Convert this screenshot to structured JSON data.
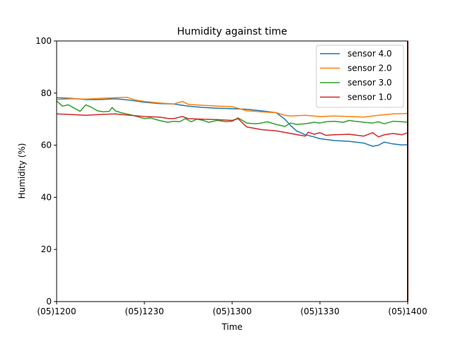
{
  "chart_data": {
    "type": "line",
    "title": "Humidity against  time",
    "xlabel": "Time",
    "ylabel": "Humidity (%)",
    "x_unit": "minutes",
    "x_ticks": [
      {
        "value": 0,
        "label": "(05)1200"
      },
      {
        "value": 30,
        "label": "(05)1230"
      },
      {
        "value": 60,
        "label": "(05)1300"
      },
      {
        "value": 90,
        "label": "(05)1330"
      },
      {
        "value": 120,
        "label": "(05)1400"
      }
    ],
    "xlim": [
      0,
      120
    ],
    "ylim": [
      0,
      100
    ],
    "y_ticks": [
      0,
      20,
      40,
      60,
      80,
      100
    ],
    "grid": false,
    "legend_position": "top-right",
    "series": [
      {
        "name": "sensor 4.0",
        "color": "#1f77b4",
        "x": [
          0,
          5,
          10,
          15,
          20,
          25,
          30,
          35,
          40,
          45,
          50,
          55,
          60,
          65,
          70,
          75,
          78,
          80,
          82,
          85,
          88,
          90,
          95,
          100,
          105,
          108,
          110,
          112,
          115,
          118,
          120
        ],
        "y": [
          78.2,
          78.0,
          77.5,
          77.5,
          77.8,
          77.3,
          76.5,
          76.0,
          75.8,
          75.0,
          74.5,
          74.2,
          74.0,
          73.8,
          73.2,
          72.5,
          70.0,
          67.5,
          65.5,
          64.0,
          63.2,
          62.5,
          61.8,
          61.5,
          60.8,
          59.6,
          60.0,
          61.2,
          60.5,
          60.1,
          60.2
        ]
      },
      {
        "name": "sensor 2.0",
        "color": "#ff7f0e",
        "x": [
          0,
          5,
          10,
          15,
          20,
          24,
          27,
          30,
          35,
          40,
          43,
          45,
          50,
          55,
          60,
          65,
          70,
          75,
          78,
          80,
          85,
          90,
          95,
          100,
          105,
          110,
          115,
          120
        ],
        "y": [
          77.5,
          77.8,
          77.7,
          78.0,
          78.2,
          78.4,
          77.3,
          76.8,
          76.2,
          75.8,
          76.8,
          75.7,
          75.3,
          75.0,
          74.8,
          73.2,
          72.8,
          72.5,
          71.5,
          71.2,
          71.5,
          71.0,
          71.2,
          71.0,
          70.8,
          71.5,
          72.0,
          72.2
        ]
      },
      {
        "name": "sensor 3.0",
        "color": "#2ca02c",
        "x": [
          0,
          2,
          4,
          6,
          8,
          10,
          12,
          14,
          16,
          18,
          19,
          20,
          22,
          24,
          26,
          28,
          30,
          32,
          35,
          38,
          40,
          42,
          44,
          46,
          48,
          50,
          52,
          55,
          58,
          60,
          62,
          65,
          68,
          70,
          72,
          75,
          78,
          80,
          82,
          85,
          88,
          90,
          92,
          95,
          98,
          100,
          102,
          105,
          108,
          110,
          112,
          115,
          118,
          120
        ],
        "y": [
          77.0,
          75.0,
          75.5,
          74.2,
          73.0,
          75.5,
          74.5,
          73.2,
          72.8,
          73.0,
          74.5,
          73.2,
          72.5,
          72.0,
          71.5,
          70.8,
          70.2,
          70.5,
          69.5,
          68.8,
          69.2,
          69.0,
          70.2,
          69.0,
          70.0,
          69.5,
          68.8,
          69.5,
          69.0,
          69.2,
          70.5,
          68.5,
          68.2,
          68.5,
          69.0,
          68.0,
          67.2,
          68.5,
          68.0,
          68.2,
          68.8,
          68.5,
          69.0,
          69.2,
          68.8,
          69.5,
          69.2,
          68.8,
          68.5,
          69.0,
          68.2,
          69.2,
          69.0,
          68.8
        ]
      },
      {
        "name": "sensor 1.0",
        "color": "#d62728",
        "x": [
          0,
          5,
          10,
          15,
          20,
          25,
          28,
          30,
          35,
          38,
          40,
          43,
          45,
          50,
          55,
          60,
          62,
          65,
          70,
          75,
          80,
          85,
          86,
          88,
          90,
          92,
          95,
          100,
          105,
          108,
          110,
          112,
          115,
          118,
          120
        ],
        "y": [
          72.0,
          71.8,
          71.5,
          71.8,
          72.0,
          71.5,
          71.2,
          71.0,
          70.8,
          70.3,
          70.2,
          71.0,
          70.2,
          70.0,
          69.8,
          69.5,
          70.2,
          67.0,
          66.0,
          65.5,
          64.5,
          63.5,
          65.0,
          64.2,
          64.8,
          63.8,
          64.0,
          64.2,
          63.5,
          64.8,
          63.2,
          64.0,
          64.5,
          64.0,
          64.8
        ]
      }
    ],
    "end_marker": {
      "x": 120,
      "color": "#8b0000"
    }
  }
}
